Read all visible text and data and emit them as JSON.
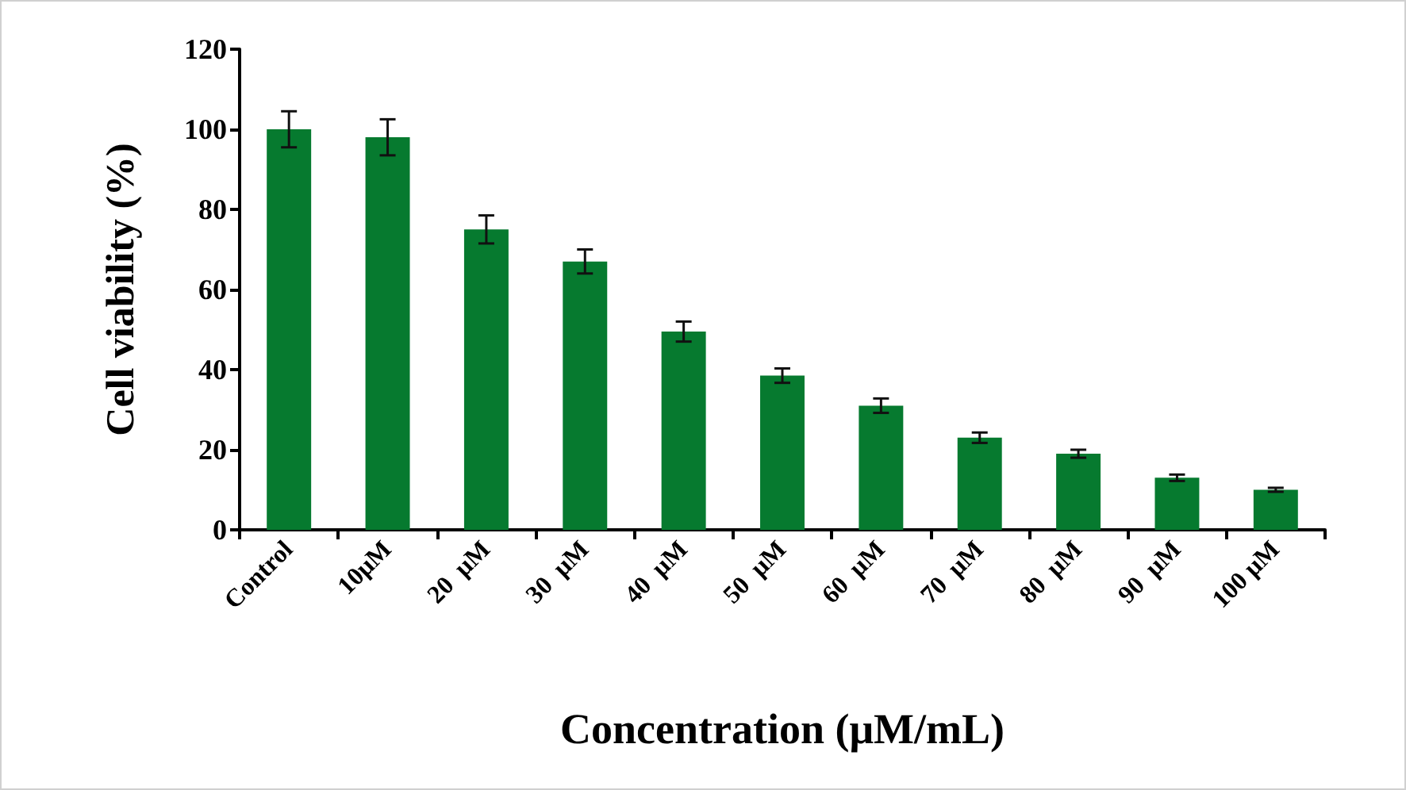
{
  "chart_data": {
    "type": "bar",
    "xlabel": "Concentration (μM/mL)",
    "ylabel": "Cell viability (%)",
    "categories": [
      "Control",
      "10μM",
      "20  μM",
      "30  μM",
      "40  μM",
      "50  μM",
      "60  μM",
      "70  μM",
      "80  μM",
      "90  μM",
      "100 μM"
    ],
    "values": [
      100,
      98,
      75,
      67,
      49.5,
      38.5,
      31,
      23,
      19,
      13,
      10
    ],
    "errors": [
      4.5,
      4.5,
      3.5,
      3,
      2.5,
      1.8,
      1.8,
      1.3,
      1,
      0.8,
      0.5
    ],
    "color": "#067a2f",
    "ylim": [
      0,
      120
    ],
    "yticks": [
      0,
      20,
      40,
      60,
      80,
      100,
      120
    ],
    "grid": false
  }
}
